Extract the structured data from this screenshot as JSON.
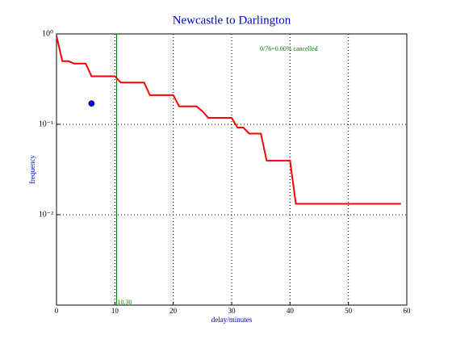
{
  "chart_data": {
    "type": "line",
    "title": "Newcastle to Darlington",
    "x_label": "delay/minutes",
    "y_label": "frequency",
    "log_y": true,
    "grid": true,
    "xlim": [
      0,
      60
    ],
    "xticks": [
      0,
      10,
      20,
      30,
      40,
      50,
      60
    ],
    "ylim": [
      0.001,
      1
    ],
    "yticks": [
      {
        "value": 1,
        "label": "10⁰"
      },
      {
        "value": 0.1,
        "label": "10⁻¹"
      },
      {
        "value": 0.01,
        "label": "10⁻²"
      }
    ],
    "series": [
      {
        "color": "#ff0000",
        "x": [
          0,
          1,
          2,
          3,
          5,
          6,
          10,
          11,
          15,
          16,
          20,
          21,
          24,
          25,
          26,
          30,
          31,
          32,
          33,
          34,
          35,
          36,
          40,
          41,
          59
        ],
        "values": [
          0.95,
          0.5,
          0.5,
          0.47,
          0.47,
          0.34,
          0.34,
          0.29,
          0.29,
          0.21,
          0.21,
          0.158,
          0.158,
          0.139,
          0.118,
          0.118,
          0.092,
          0.092,
          0.079,
          0.079,
          0.079,
          0.0395,
          0.0395,
          0.0132,
          0.0132
        ]
      }
    ],
    "points": [
      {
        "x": 6,
        "y": 0.17,
        "color": "#0000ff"
      }
    ],
    "vline": {
      "x": 10.3,
      "label": "10.30",
      "color": "#008000"
    },
    "annotation": {
      "text": "0/76=0.00% cancelled",
      "color": "#008000"
    }
  }
}
